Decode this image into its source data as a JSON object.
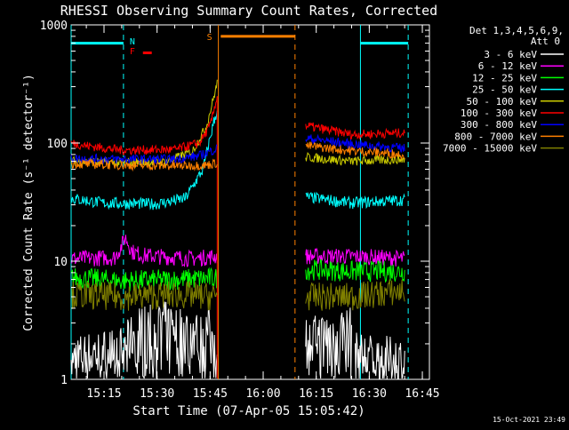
{
  "chart_data": {
    "type": "line",
    "title": "RHESSI Observing Summary Count Rates, Corrected",
    "xlabel": "Start Time (07-Apr-05 15:05:42)",
    "ylabel": "Corrected Count Rate (s⁻¹ detector⁻¹)",
    "timestamp": "15-Oct-2021 23:49",
    "y_scale": "log",
    "ylim": [
      1,
      1000
    ],
    "xlim": [
      "15:05:42",
      "16:47:00"
    ],
    "y_ticks": [
      1,
      10,
      100,
      1000
    ],
    "y_tick_labels": [
      "1",
      "10",
      "100",
      "1000"
    ],
    "x_ticks": [
      "15:15",
      "15:30",
      "15:45",
      "16:00",
      "16:15",
      "16:30",
      "16:45"
    ],
    "legend_header": [
      "Det 1,3,4,5,6,9,",
      "Att 0"
    ],
    "legend_placement": "right",
    "grid": false,
    "series": [
      {
        "name": "3 - 6 keV",
        "color": "#000000",
        "style": "noisy",
        "segments": [
          {
            "x": [
              "15:05:42",
              "15:20",
              "15:25",
              "15:33",
              "15:42",
              "15:47"
            ],
            "y": [
              1.7,
              2.0,
              3.0,
              3.3,
              2.6,
              3.0
            ]
          },
          {
            "x": [
              "16:12",
              "16:25"
            ],
            "y": [
              2.4,
              3.0
            ]
          },
          {
            "x": [
              "16:26",
              "16:40"
            ],
            "y": [
              1.8,
              1.6
            ]
          }
        ]
      },
      {
        "name": "6 - 12 keV",
        "color": "#FF00FF",
        "style": "noisy",
        "segments": [
          {
            "x": [
              "15:05:42",
              "15:18",
              "15:20",
              "15:21",
              "15:23",
              "15:26",
              "15:40",
              "15:47"
            ],
            "y": [
              10.5,
              10.7,
              13.5,
              16,
              12,
              11.2,
              10.5,
              11
            ]
          },
          {
            "x": [
              "16:12",
              "16:25",
              "16:40"
            ],
            "y": [
              11,
              11,
              10.5
            ]
          }
        ]
      },
      {
        "name": "12 - 25 keV",
        "color": "#00FF00",
        "style": "noisy",
        "segments": [
          {
            "x": [
              "15:05:42",
              "15:20",
              "15:35",
              "15:47"
            ],
            "y": [
              7.3,
              6.8,
              7.0,
              7.2
            ]
          },
          {
            "x": [
              "16:12",
              "16:25",
              "16:40"
            ],
            "y": [
              8.5,
              8.2,
              8.2
            ]
          }
        ]
      },
      {
        "name": "25 - 50 keV",
        "color": "#00FFFF",
        "style": "noisy",
        "segments": [
          {
            "x": [
              "15:05:42",
              "15:15",
              "15:30",
              "15:38",
              "15:43",
              "15:46",
              "15:47"
            ],
            "y": [
              34,
              31,
              30.5,
              34,
              60,
              150,
              190
            ]
          },
          {
            "x": [
              "16:12",
              "16:25",
              "16:40"
            ],
            "y": [
              35,
              31,
              33
            ]
          }
        ]
      },
      {
        "name": "50 - 100 keV",
        "color": "#CCCC00",
        "style": "noisy",
        "segments": [
          {
            "x": [
              "15:05:42",
              "15:20",
              "15:33",
              "15:40",
              "15:44",
              "15:47"
            ],
            "y": [
              70,
              68,
              70,
              85,
              140,
              320
            ]
          },
          {
            "x": [
              "16:12",
              "16:25",
              "16:40"
            ],
            "y": [
              76,
              70,
              73
            ]
          }
        ]
      },
      {
        "name": "100 - 300 keV",
        "color": "#FF0000",
        "style": "noisy",
        "segments": [
          {
            "x": [
              "15:05:42",
              "15:10",
              "15:20",
              "15:35",
              "15:42",
              "15:45",
              "15:47"
            ],
            "y": [
              100,
              95,
              87,
              88,
              100,
              140,
              250
            ]
          },
          {
            "x": [
              "15:47",
              "15:47"
            ],
            "y": [
              1,
              250
            ]
          },
          {
            "x": [
              "16:12",
              "16:25",
              "16:40"
            ],
            "y": [
              140,
              118,
              122
            ]
          }
        ]
      },
      {
        "name": "300 - 800 keV",
        "color": "#0000FF",
        "style": "noisy",
        "segments": [
          {
            "x": [
              "15:05:42",
              "15:20",
              "15:35",
              "15:42",
              "15:47"
            ],
            "y": [
              74,
              73,
              73,
              78,
              90
            ]
          },
          {
            "x": [
              "16:12",
              "16:25",
              "16:40"
            ],
            "y": [
              110,
              98,
              90
            ]
          }
        ]
      },
      {
        "name": "800 - 7000 keV",
        "color": "#FF8000",
        "style": "noisy",
        "segments": [
          {
            "x": [
              "15:05:42",
              "15:20",
              "15:35",
              "15:44",
              "15:47"
            ],
            "y": [
              67,
              65,
              64,
              65,
              68
            ]
          },
          {
            "x": [
              "16:12",
              "16:25",
              "16:40"
            ],
            "y": [
              95,
              86,
              80
            ]
          }
        ]
      },
      {
        "name": "7000 - 15000 keV",
        "color": "#808000",
        "style": "noisy",
        "segments": [
          {
            "x": [
              "15:05:42",
              "15:20",
              "15:35",
              "15:47"
            ],
            "y": [
              5.2,
              5.0,
              5.2,
              5.0
            ]
          },
          {
            "x": [
              "16:12",
              "16:25",
              "16:40"
            ],
            "y": [
              5.0,
              5.0,
              5.6
            ]
          }
        ]
      }
    ],
    "flag_annotations": {
      "labels": [
        {
          "text": "N",
          "color": "#00FFFF"
        },
        {
          "text": "F",
          "color": "#FF0000"
        },
        {
          "text": "S",
          "color": "#FF8000"
        }
      ],
      "bars": [
        {
          "label": "night",
          "color": "#00FFFF",
          "x": [
            "15:05:42",
            "15:20:30"
          ],
          "y": 700
        },
        {
          "label": "night",
          "color": "#00FFFF",
          "x": [
            "16:27:30",
            "16:41:00"
          ],
          "y": 700
        },
        {
          "label": "flare",
          "color": "#FF0000",
          "x": [
            "15:26:00",
            "15:28:30"
          ],
          "y": 580
        },
        {
          "label": "saa",
          "color": "#FF8000",
          "x": [
            "15:48:00",
            "16:09:00"
          ],
          "y": 800
        }
      ],
      "vlines": [
        {
          "color": "#00FFFF",
          "x": "15:05:42",
          "dashed": false
        },
        {
          "color": "#00FFFF",
          "x": "15:20:30",
          "dashed": true
        },
        {
          "color": "#FF8000",
          "x": "15:47:20",
          "dashed": false
        },
        {
          "color": "#FF8000",
          "x": "16:09:00",
          "dashed": true
        },
        {
          "color": "#00FFFF",
          "x": "16:27:30",
          "dashed": false
        },
        {
          "color": "#00FFFF",
          "x": "16:41:00",
          "dashed": true
        }
      ]
    }
  }
}
